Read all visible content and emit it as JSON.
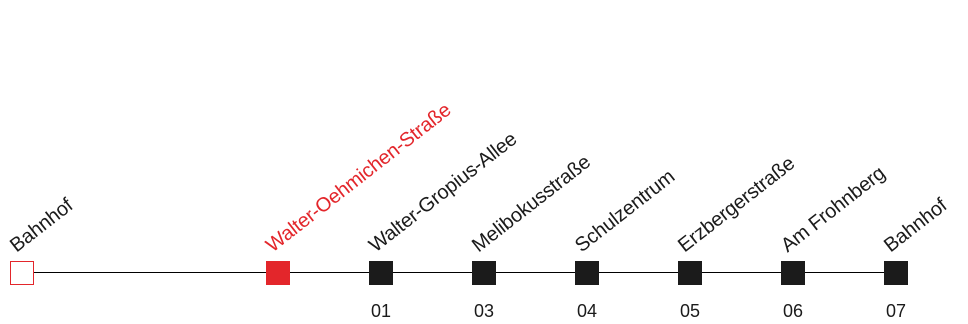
{
  "colors": {
    "current": "#e3262b",
    "regular": "#1b1b1b"
  },
  "stops": [
    {
      "name": "Bahnhof",
      "number": "",
      "kind": "terminus"
    },
    {
      "name": "Walter-Oehmichen-Straße",
      "number": "",
      "kind": "current"
    },
    {
      "name": "Walter-Gropius-Allee",
      "number": "01",
      "kind": "regular"
    },
    {
      "name": "Melibokusstraße",
      "number": "03",
      "kind": "regular"
    },
    {
      "name": "Schulzentrum",
      "number": "04",
      "kind": "regular"
    },
    {
      "name": "Erzbergerstraße",
      "number": "05",
      "kind": "regular"
    },
    {
      "name": "Am Frohnberg",
      "number": "06",
      "kind": "regular"
    },
    {
      "name": "Bahnhof",
      "number": "07",
      "kind": "regular"
    }
  ]
}
